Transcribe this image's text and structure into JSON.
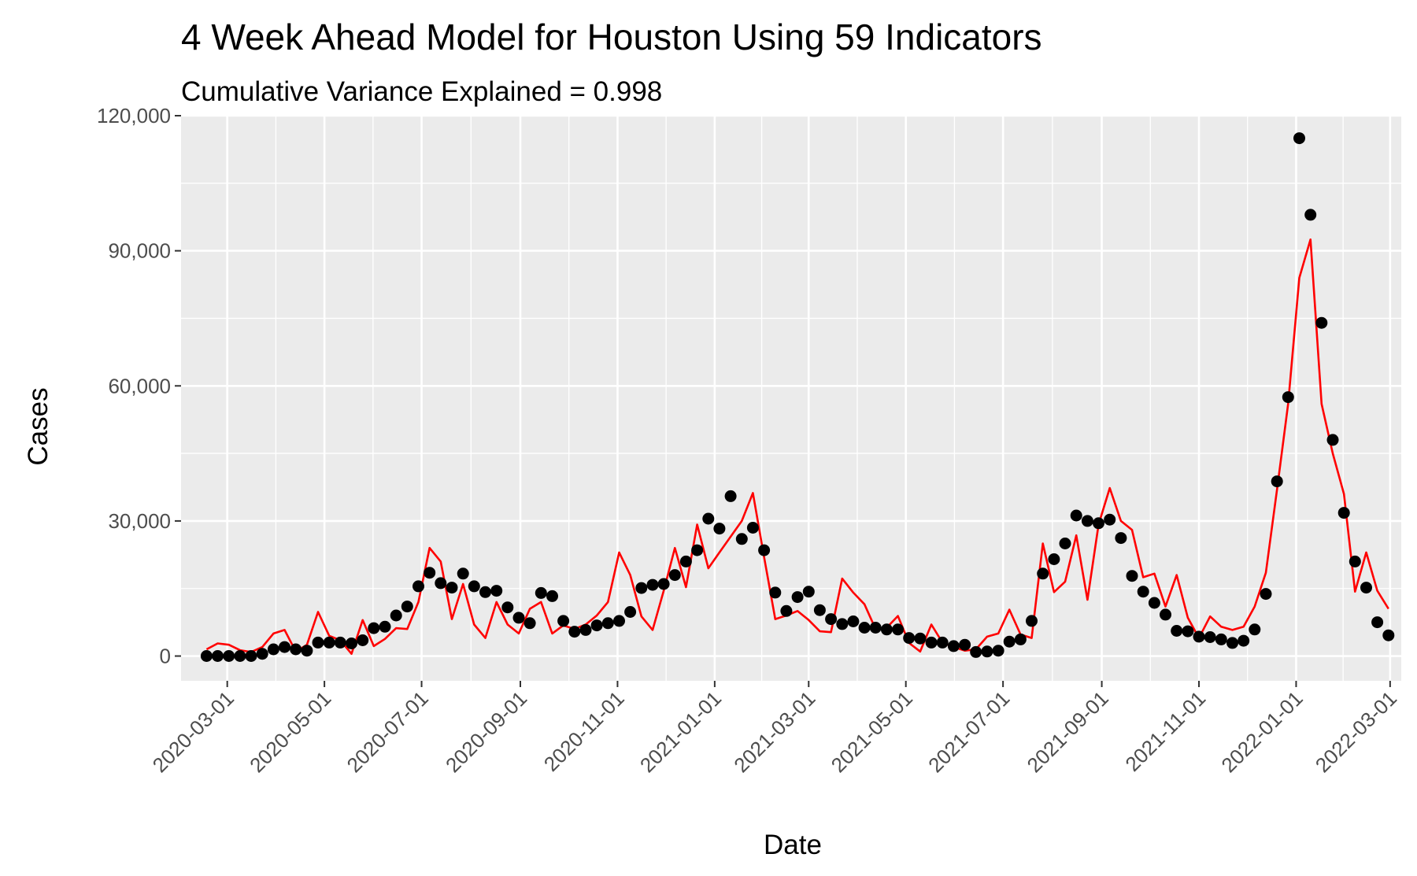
{
  "chart_data": {
    "type": "line",
    "title": "4 Week Ahead Model for Houston Using 59 Indicators",
    "subtitle": "Cumulative Variance Explained = 0.998",
    "xlabel": "Date",
    "ylabel": "Cases",
    "xlim": [
      "2020-02-01",
      "2022-03-08"
    ],
    "ylim": [
      -5500,
      120000
    ],
    "x_ticks": [
      "2020-03-01",
      "2020-05-01",
      "2020-07-01",
      "2020-09-01",
      "2020-11-01",
      "2021-01-01",
      "2021-03-01",
      "2021-05-01",
      "2021-07-01",
      "2021-09-01",
      "2021-11-01",
      "2022-01-01",
      "2022-03-01"
    ],
    "y_ticks": [
      0,
      30000,
      60000,
      90000,
      120000
    ],
    "y_tick_labels": [
      "0",
      "30,000",
      "60,000",
      "90,000",
      "120,000"
    ],
    "grid": true,
    "background": "#ebebeb",
    "gridline_color": "#ffffff",
    "series": [
      {
        "kind": "points",
        "color": "#000000",
        "x": [
          "2020-02-17",
          "2020-02-24",
          "2020-03-02",
          "2020-03-09",
          "2020-03-16",
          "2020-03-23",
          "2020-03-30",
          "2020-04-06",
          "2020-04-13",
          "2020-04-20",
          "2020-04-27",
          "2020-05-04",
          "2020-05-11",
          "2020-05-18",
          "2020-05-25",
          "2020-06-01",
          "2020-06-08",
          "2020-06-15",
          "2020-06-22",
          "2020-06-29",
          "2020-07-06",
          "2020-07-13",
          "2020-07-20",
          "2020-07-27",
          "2020-08-03",
          "2020-08-10",
          "2020-08-17",
          "2020-08-24",
          "2020-08-31",
          "2020-09-07",
          "2020-09-14",
          "2020-09-21",
          "2020-09-28",
          "2020-10-05",
          "2020-10-12",
          "2020-10-19",
          "2020-10-26",
          "2020-11-02",
          "2020-11-09",
          "2020-11-16",
          "2020-11-23",
          "2020-11-30",
          "2020-12-07",
          "2020-12-14",
          "2020-12-21",
          "2020-12-28",
          "2021-01-04",
          "2021-01-11",
          "2021-01-18",
          "2021-01-25",
          "2021-02-01",
          "2021-02-08",
          "2021-02-15",
          "2021-02-22",
          "2021-03-01",
          "2021-03-08",
          "2021-03-15",
          "2021-03-22",
          "2021-03-29",
          "2021-04-05",
          "2021-04-12",
          "2021-04-19",
          "2021-04-26",
          "2021-05-03",
          "2021-05-10",
          "2021-05-17",
          "2021-05-24",
          "2021-05-31",
          "2021-06-07",
          "2021-06-14",
          "2021-06-21",
          "2021-06-28",
          "2021-07-05",
          "2021-07-12",
          "2021-07-19",
          "2021-07-26",
          "2021-08-02",
          "2021-08-09",
          "2021-08-16",
          "2021-08-23",
          "2021-08-30",
          "2021-09-06",
          "2021-09-13",
          "2021-09-20",
          "2021-09-27",
          "2021-10-04",
          "2021-10-11",
          "2021-10-18",
          "2021-10-25",
          "2021-11-01",
          "2021-11-08",
          "2021-11-15",
          "2021-11-22",
          "2021-11-29",
          "2021-12-06",
          "2021-12-13",
          "2021-12-20",
          "2021-12-27",
          "2022-01-03",
          "2022-01-10",
          "2022-01-17",
          "2022-01-24",
          "2022-01-31",
          "2022-02-07",
          "2022-02-14",
          "2022-02-21",
          "2022-02-28"
        ],
        "y": [
          0,
          0,
          0,
          0,
          0,
          500,
          1500,
          2000,
          1500,
          1200,
          3000,
          3000,
          3000,
          2800,
          3500,
          6200,
          6500,
          9000,
          11000,
          15500,
          18500,
          16200,
          15200,
          18300,
          15500,
          14200,
          14500,
          10800,
          8500,
          7300,
          14000,
          13300,
          7800,
          5400,
          5800,
          6800,
          7300,
          7800,
          9800,
          15100,
          15800,
          16000,
          18000,
          21000,
          23500,
          30500,
          28300,
          35500,
          26000,
          28500,
          23500,
          14100,
          10000,
          13100,
          14300,
          10200,
          8200,
          7100,
          7700,
          6300,
          6300,
          5900,
          5900,
          4000,
          3900,
          3000,
          3000,
          2200,
          2500,
          900,
          1000,
          1200,
          3200,
          3700,
          7800,
          18300,
          21500,
          25000,
          31200,
          30000,
          29500,
          30300,
          26200,
          17800,
          14300,
          11800,
          9200,
          5600,
          5500,
          4300,
          4200,
          3700,
          2900,
          3400,
          5900,
          13800,
          38800,
          57500,
          115000,
          98000,
          74000,
          48000,
          31800,
          21000,
          15200,
          7500,
          4600
        ]
      },
      {
        "kind": "line",
        "color": "#ff0000",
        "x": [
          "2020-02-17",
          "2020-02-24",
          "2020-03-02",
          "2020-03-09",
          "2020-03-16",
          "2020-03-23",
          "2020-03-30",
          "2020-04-06",
          "2020-04-13",
          "2020-04-20",
          "2020-04-27",
          "2020-05-04",
          "2020-05-11",
          "2020-05-18",
          "2020-05-25",
          "2020-06-01",
          "2020-06-08",
          "2020-06-15",
          "2020-06-22",
          "2020-06-29",
          "2020-07-06",
          "2020-07-13",
          "2020-07-20",
          "2020-07-27",
          "2020-08-03",
          "2020-08-10",
          "2020-08-17",
          "2020-08-24",
          "2020-08-31",
          "2020-09-07",
          "2020-09-14",
          "2020-09-21",
          "2020-09-28",
          "2020-10-05",
          "2020-10-12",
          "2020-10-19",
          "2020-10-26",
          "2020-11-02",
          "2020-11-09",
          "2020-11-16",
          "2020-11-23",
          "2020-11-30",
          "2020-12-07",
          "2020-12-14",
          "2020-12-21",
          "2020-12-28",
          "2021-01-04",
          "2021-01-11",
          "2021-01-18",
          "2021-01-25",
          "2021-02-01",
          "2021-02-08",
          "2021-02-15",
          "2021-02-22",
          "2021-03-01",
          "2021-03-08",
          "2021-03-15",
          "2021-03-22",
          "2021-03-29",
          "2021-04-05",
          "2021-04-12",
          "2021-04-19",
          "2021-04-26",
          "2021-05-03",
          "2021-05-10",
          "2021-05-17",
          "2021-05-24",
          "2021-05-31",
          "2021-06-07",
          "2021-06-14",
          "2021-06-21",
          "2021-06-28",
          "2021-07-05",
          "2021-07-12",
          "2021-07-19",
          "2021-07-26",
          "2021-08-02",
          "2021-08-09",
          "2021-08-16",
          "2021-08-23",
          "2021-08-30",
          "2021-09-06",
          "2021-09-13",
          "2021-09-20",
          "2021-09-27",
          "2021-10-04",
          "2021-10-11",
          "2021-10-18",
          "2021-10-25",
          "2021-11-01",
          "2021-11-08",
          "2021-11-15",
          "2021-11-22",
          "2021-11-29",
          "2021-12-06",
          "2021-12-13",
          "2021-12-20",
          "2021-12-27",
          "2022-01-03",
          "2022-01-10",
          "2022-01-17",
          "2022-01-24",
          "2022-01-31",
          "2022-02-07",
          "2022-02-14",
          "2022-02-21",
          "2022-02-28"
        ],
        "y": [
          1500,
          2800,
          2500,
          1300,
          900,
          2000,
          5000,
          5800,
          1000,
          2500,
          9800,
          4500,
          3500,
          500,
          8000,
          2200,
          3800,
          6200,
          6000,
          12000,
          24000,
          21000,
          8200,
          16000,
          7000,
          4000,
          12000,
          7000,
          5000,
          10500,
          12000,
          5000,
          6800,
          6000,
          7000,
          9000,
          12000,
          23000,
          18000,
          8800,
          5800,
          14500,
          24000,
          15300,
          29200,
          19500,
          23000,
          26500,
          30000,
          36200,
          22000,
          8200,
          9000,
          10000,
          8000,
          5500,
          5300,
          17200,
          14100,
          11500,
          6000,
          6300,
          8900,
          2900,
          1000,
          7000,
          3000,
          2000,
          1200,
          1500,
          4300,
          5000,
          10300,
          4800,
          4000,
          25000,
          14200,
          16500,
          26800,
          12500,
          29200,
          37300,
          30000,
          28000,
          17500,
          18300,
          11000,
          18000,
          8500,
          4000,
          8800,
          6500,
          5800,
          6500,
          11000,
          18500,
          37000,
          56000,
          84000,
          92500,
          56000,
          45000,
          36000,
          14300,
          23000,
          14500,
          10500
        ]
      }
    ]
  }
}
